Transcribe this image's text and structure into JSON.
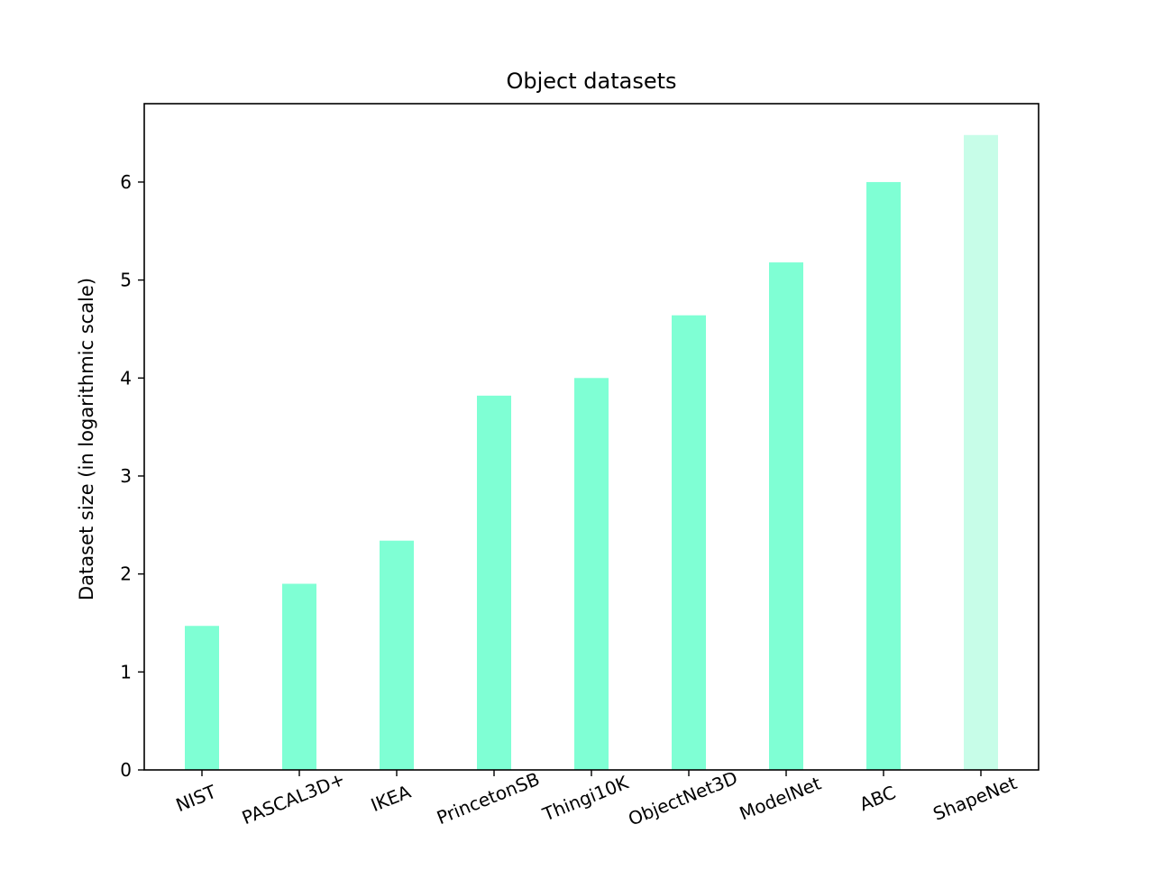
{
  "chart_data": {
    "type": "bar",
    "title": "Object datasets",
    "xlabel": "",
    "ylabel": "Dataset size (in logarithmic scale)",
    "categories": [
      "NIST",
      "PASCAL3D+",
      "IKEA",
      "PrincetonSB",
      "Thingi10K",
      "ObjectNet3D",
      "ModelNet",
      "ABC",
      "ShapeNet"
    ],
    "values": [
      1.47,
      1.9,
      2.34,
      3.82,
      4.0,
      4.64,
      5.18,
      6.0,
      6.48
    ],
    "bar_colors": [
      "#7fffd4",
      "#7fffd4",
      "#7fffd4",
      "#7fffd4",
      "#7fffd4",
      "#7fffd4",
      "#7fffd4",
      "#7fffd4",
      "#c7fde8"
    ],
    "ylim": [
      0,
      6.8
    ],
    "yticks": [
      0,
      1,
      2,
      3,
      4,
      5,
      6
    ],
    "grid": false,
    "legend": false
  }
}
